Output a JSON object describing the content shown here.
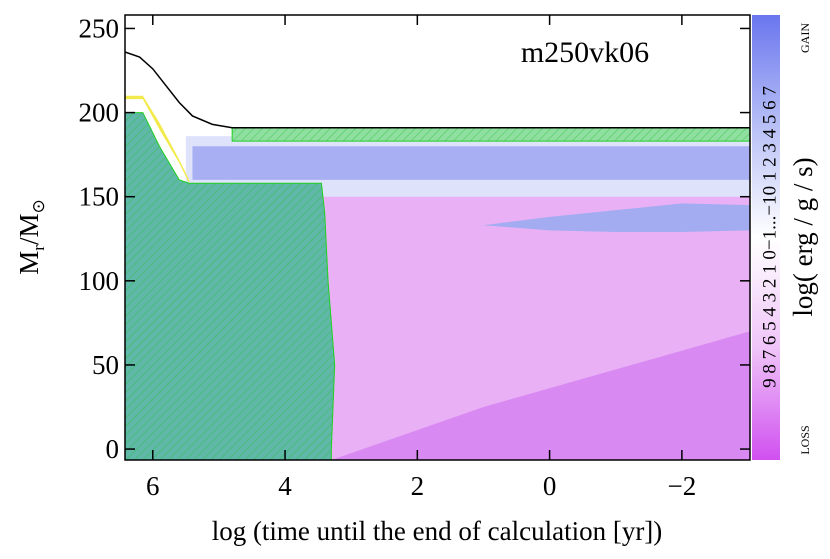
{
  "chart_data": {
    "type": "kippenhahn",
    "title": "m250vk06",
    "xlabel": "log (time until the end of calculation [yr])",
    "ylabel": {
      "main": "M",
      "sub": "r",
      "main2": "/M",
      "sub2": "⊙"
    },
    "xlim": [
      6.42,
      -3.03
    ],
    "ylim": [
      -6.5,
      258
    ],
    "xticks": [
      6,
      4,
      2,
      0,
      {
        "value": -2,
        "label": "−2"
      }
    ],
    "yticks": [
      0,
      50,
      100,
      150,
      200,
      250
    ],
    "regions": [
      {
        "color": "#e9b0f5",
        "x": [
          5.4,
          -3.03,
          -3.03,
          5.4
        ],
        "y": [
          -6.5,
          -6.5,
          158,
          158
        ]
      },
      {
        "color": "#d98af2",
        "x": [
          3.3,
          -3.03,
          -3.03,
          1,
          3.3
        ],
        "y": [
          -6.5,
          -6.5,
          70,
          25,
          -6.5
        ]
      },
      {
        "color": "#dfe2fb",
        "x": [
          5.5,
          -3.03,
          -3.03,
          5.5
        ],
        "y": [
          150,
          150,
          186,
          186
        ]
      },
      {
        "color": "#a8b0f3",
        "x": [
          5.4,
          -3.03,
          -3.03,
          5.4
        ],
        "y": [
          160,
          160,
          180,
          180
        ]
      },
      {
        "color": "#a3acf0",
        "x": [
          1,
          0,
          -1,
          -2,
          -3.03,
          -3.03,
          -2,
          -1,
          0
        ],
        "y": [
          133,
          130,
          129,
          129,
          130,
          145,
          146,
          142,
          138
        ]
      },
      {
        "color": "#f2ea4a",
        "x": [
          6.42,
          6.15,
          5.9,
          5.6,
          5.45,
          5.45,
          5.6,
          5.9,
          6.15,
          6.42
        ],
        "y": [
          208,
          208,
          190,
          170,
          158,
          160,
          172,
          194,
          210,
          210
        ]
      },
      {
        "color": "#5fb8a8",
        "hatch": true,
        "x": [
          6.42,
          6.15,
          5.9,
          5.6,
          5.45,
          3.45,
          3.4,
          3.35,
          3.25,
          3.3,
          3.3,
          6.42
        ],
        "y": [
          200,
          200,
          180,
          160,
          158,
          158,
          140,
          100,
          50,
          0,
          -6.5,
          -6.5
        ]
      },
      {
        "color": "#8fe0a0",
        "hatch": true,
        "x": [
          4.8,
          -3.03,
          -3.03,
          4.8
        ],
        "y": [
          183,
          183,
          191,
          191
        ]
      }
    ],
    "lines": [
      {
        "color": "#000000",
        "x": [
          6.42,
          6.2,
          6.0,
          5.8,
          5.6,
          5.4,
          5.1,
          4.8,
          4.5,
          -3.03
        ],
        "y": [
          236,
          233,
          226,
          216,
          206,
          198,
          193,
          191,
          191,
          191
        ]
      }
    ],
    "colorbar": {
      "label": "log( erg / g / s)",
      "ticks": "9 8 7 6 5 4 3 2 1 0−1...−10 1 2 3 4 5 6 7",
      "top": "GAIN",
      "bottom": "LOSS",
      "colors": [
        "#d050f0",
        "#efc4f8",
        "#ffffff",
        "#b8c0f6",
        "#6a76ee"
      ]
    }
  }
}
